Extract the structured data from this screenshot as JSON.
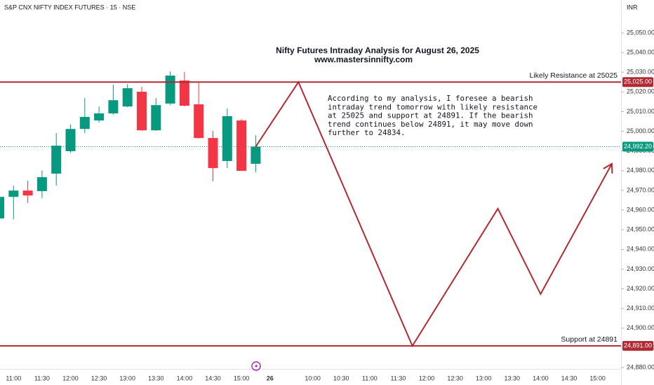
{
  "chart_data": {
    "type": "candlestick",
    "header": "S&P CNX NIFTY INDEX FUTURES · 15 · NSE",
    "currency": "INR",
    "title": "Nifty Futures Intraday Analysis for August 26, 2025",
    "subtitle": "www.mastersinnifty.com",
    "annotation": [
      "According to my analysis, I foresee a bearish",
      "intraday trend tomorrow with likely resistance",
      "at 25025 and support at 24891. If the bearish",
      "trend continues below 24891, it may move down",
      "further to 24834."
    ],
    "categories": [
      null,
      "11:00",
      null,
      "11:30",
      null,
      "12:00",
      null,
      "12:30",
      null,
      "13:00",
      null,
      "13:30",
      null,
      "14:00",
      null,
      "14:30",
      null,
      "15:00",
      null,
      "26",
      null,
      null,
      "10:00",
      null,
      "10:30",
      null,
      "11:00",
      null,
      "11:30",
      null,
      "12:00",
      null,
      "12:30",
      null,
      "13:00",
      null,
      "13:30",
      null,
      "14:00",
      null,
      "14:30",
      null,
      "15:00",
      null
    ],
    "open": [
      24955.7,
      24966.7,
      24969.9,
      24969.6,
      24978.5,
      24989.9,
      25001.2,
      25005.5,
      25009.1,
      25012.6,
      25020.1,
      25000.5,
      25014.1,
      25025.8,
      25013.7,
      24996.6,
      24984.9,
      25005.5,
      24983.5,
      null,
      null,
      null,
      null,
      null,
      null,
      null,
      null,
      null,
      null,
      null,
      null,
      null,
      null,
      null,
      null,
      null,
      null,
      null,
      null,
      null,
      null,
      null,
      null,
      null
    ],
    "high": [
      24968.0,
      24972.4,
      24974.9,
      24980.2,
      24999.1,
      25003.4,
      25016.9,
      25012.6,
      25023.7,
      25024.0,
      25022.6,
      25016.9,
      25030.4,
      25030.1,
      25024.7,
      25000.2,
      25011.6,
      25006.2,
      24998.0,
      null,
      null,
      null,
      null,
      null,
      null,
      null,
      null,
      null,
      null,
      null,
      null,
      null,
      null,
      null,
      null,
      null,
      null,
      null,
      null,
      null,
      null,
      null,
      null,
      null
    ],
    "low": [
      24955.0,
      24955.3,
      24963.5,
      24966.0,
      24972.4,
      24989.1,
      24999.1,
      25004.4,
      25008.4,
      25012.3,
      25000.2,
      25000.2,
      25013.3,
      25012.6,
      24996.3,
      24974.6,
      24981.3,
      24979.9,
      24979.2,
      null,
      null,
      null,
      null,
      null,
      null,
      null,
      null,
      null,
      null,
      null,
      null,
      null,
      null,
      null,
      null,
      null,
      null,
      null,
      null,
      null,
      null,
      null,
      null,
      null
    ],
    "close": [
      24966.7,
      24969.9,
      24967.4,
      24976.7,
      24992.7,
      25001.2,
      25007.3,
      25009.1,
      25015.8,
      25021.9,
      25000.5,
      25013.3,
      25028.3,
      25013.0,
      24996.6,
      24981.3,
      25007.7,
      24979.9,
      24992.2,
      null,
      null,
      null,
      null,
      null,
      null,
      null,
      null,
      null,
      null,
      null,
      null,
      null,
      null,
      null,
      null,
      null,
      null,
      null,
      null,
      null,
      null,
      null,
      null,
      null
    ],
    "up_color": "#089981",
    "down_color": "#f23645",
    "projection": {
      "x": [
        18,
        21,
        29,
        35,
        38,
        43
      ],
      "values": [
        24992.2,
        25025,
        24891,
        24960.7,
        24917.3,
        24983.5
      ],
      "color": "#b22833"
    },
    "levels": [
      {
        "name": "Likely Resistance at 25025",
        "value": 25025,
        "label": "25,025.00",
        "color": "#b22833"
      },
      {
        "name": "Support at 24891",
        "value": 24891,
        "label": "24,891.00",
        "color": "#b22833"
      }
    ],
    "last_price": {
      "value": 24992.2,
      "label": "24,992.20",
      "color": "#089981"
    },
    "ylim": [
      24879.3,
      25066.7
    ],
    "yticks": [
      {
        "value": 24880,
        "label": "24,880.00"
      },
      {
        "value": 24890,
        "label": "24,890.00"
      },
      {
        "value": 24900,
        "label": "24,900.00"
      },
      {
        "value": 24910,
        "label": "24,910.00"
      },
      {
        "value": 24920,
        "label": "24,920.00"
      },
      {
        "value": 24930,
        "label": "24,930.00"
      },
      {
        "value": 24940,
        "label": "24,940.00"
      },
      {
        "value": 24950,
        "label": "24,950.00"
      },
      {
        "value": 24960,
        "label": "24,960.00"
      },
      {
        "value": 24970,
        "label": "24,970.00"
      },
      {
        "value": 24980,
        "label": "24,980.00"
      },
      {
        "value": 24990,
        "label": "24,990.00"
      },
      {
        "value": 25000,
        "label": "25,000.00"
      },
      {
        "value": 25010,
        "label": "25,010.00"
      },
      {
        "value": 25020,
        "label": "25,020.00"
      },
      {
        "value": 25030,
        "label": "25,030.00"
      },
      {
        "value": 25040,
        "label": "25,040.00"
      },
      {
        "value": 25050,
        "label": "25,050.00"
      }
    ],
    "grid": false
  }
}
